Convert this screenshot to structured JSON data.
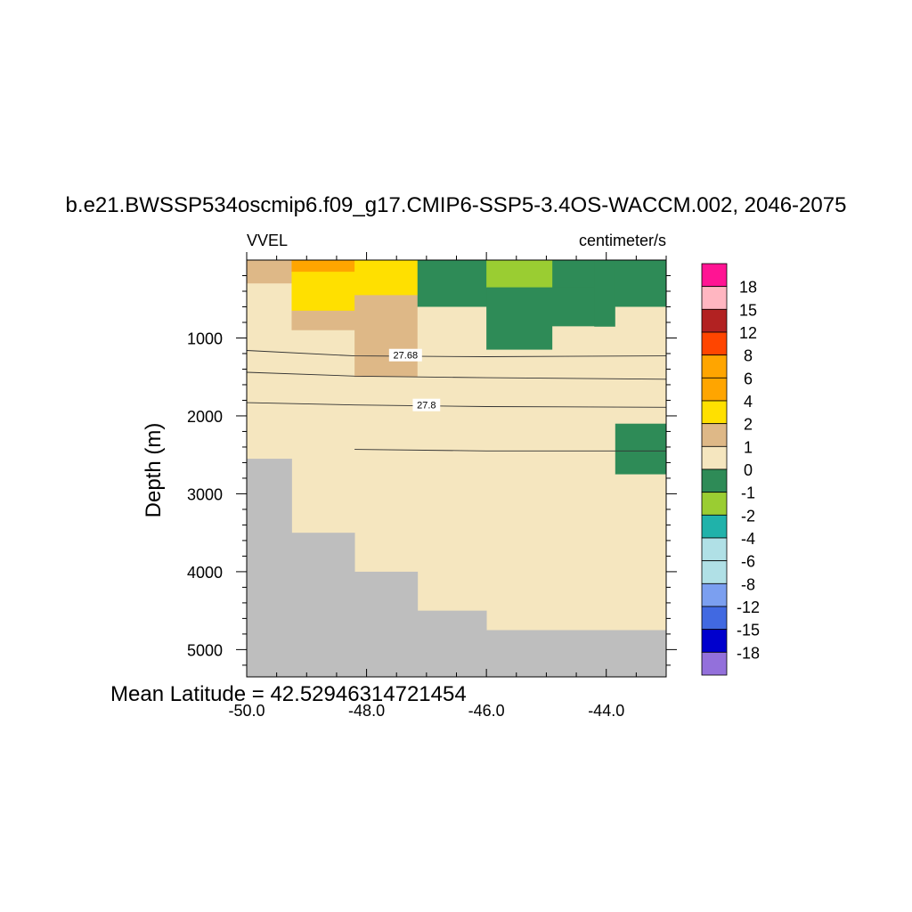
{
  "chart_data": {
    "type": "heatmap",
    "title": "b.e21.BWSSP534oscmip6.f09_g17.CMIP6-SSP5-3.4OS-WACCM.002, 2046-2075",
    "variable": "VVEL",
    "units": "centimeter/s",
    "ylabel": "Depth (m)",
    "xlabel": "",
    "footer": "Mean Latitude = 42.52946314721454",
    "xlim": [
      -50.0,
      -43.0
    ],
    "ylim": [
      5350,
      0
    ],
    "y_reversed": true,
    "x_ticks": [
      "-50.0",
      "-48.0",
      "-46.0",
      "-44.0"
    ],
    "x_tick_values": [
      -50,
      -48,
      -46,
      -44
    ],
    "y_ticks": [
      "1000",
      "2000",
      "3000",
      "4000",
      "5000"
    ],
    "y_tick_values": [
      1000,
      2000,
      3000,
      4000,
      5000
    ],
    "colorbar": {
      "labels": [
        "18",
        "15",
        "12",
        "8",
        "6",
        "4",
        "2",
        "1",
        "0",
        "-1",
        "-2",
        "-4",
        "-6",
        "-8",
        "-12",
        "-15",
        "-18"
      ],
      "colors": [
        "#ff1493",
        "#ffb6c1",
        "#b22222",
        "#ff4500",
        "#ffa500",
        "#ffa500",
        "#ffe000",
        "#deb887",
        "#f5e6bf",
        "#2e8b57",
        "#9acd32",
        "#20b2aa",
        "#b0e0e6",
        "#b0e0e6",
        "#7b9ff0",
        "#4169e1",
        "#0000cd",
        "#9370db"
      ]
    },
    "land_color": "#bebebe",
    "cells": [
      {
        "x0": -50.0,
        "x1": -49.25,
        "d0": 0,
        "d1": 300,
        "value": 1.5
      },
      {
        "x0": -50.0,
        "x1": -49.25,
        "d0": 300,
        "d1": 2550,
        "value": 0.5
      },
      {
        "x0": -49.25,
        "x1": -48.2,
        "d0": 0,
        "d1": 150,
        "value": 5
      },
      {
        "x0": -48.2,
        "x1": -47.15,
        "d0": 0,
        "d1": 150,
        "value": 3
      },
      {
        "x0": -49.25,
        "x1": -48.2,
        "d0": 150,
        "d1": 650,
        "value": 3
      },
      {
        "x0": -49.25,
        "x1": -48.2,
        "d0": 650,
        "d1": 900,
        "value": 1.5
      },
      {
        "x0": -49.25,
        "x1": -48.2,
        "d0": 900,
        "d1": 3500,
        "value": 0.5
      },
      {
        "x0": -48.2,
        "x1": -47.15,
        "d0": 150,
        "d1": 450,
        "value": 3
      },
      {
        "x0": -48.2,
        "x1": -47.15,
        "d0": 450,
        "d1": 1500,
        "value": 1.5
      },
      {
        "x0": -48.2,
        "x1": -47.15,
        "d0": 1500,
        "d1": 4000,
        "value": 0.5
      },
      {
        "x0": -47.15,
        "x1": -46.0,
        "d0": 0,
        "d1": 600,
        "value": -0.5
      },
      {
        "x0": -47.15,
        "x1": -46.0,
        "d0": 600,
        "d1": 4500,
        "value": 0.5
      },
      {
        "x0": -46.0,
        "x1": -44.9,
        "d0": 0,
        "d1": 350,
        "value": -1.5
      },
      {
        "x0": -46.0,
        "x1": -44.9,
        "d0": 350,
        "d1": 1150,
        "value": -0.5
      },
      {
        "x0": -46.0,
        "x1": -44.9,
        "d0": 1150,
        "d1": 4750,
        "value": 0.5
      },
      {
        "x0": -44.9,
        "x1": -44.2,
        "d0": 0,
        "d1": 350,
        "value": -0.5
      },
      {
        "x0": -44.9,
        "x1": -44.2,
        "d0": 350,
        "d1": 850,
        "value": -0.5
      },
      {
        "x0": -44.9,
        "x1": -43.85,
        "d0": 850,
        "d1": 4750,
        "value": 0.5
      },
      {
        "x0": -44.2,
        "x1": -43.85,
        "d0": 0,
        "d1": 850,
        "value": -0.5
      },
      {
        "x0": -43.85,
        "x1": -43.0,
        "d0": 0,
        "d1": 600,
        "value": -0.5
      },
      {
        "x0": -43.85,
        "x1": -43.0,
        "d0": 600,
        "d1": 2100,
        "value": 0.5
      },
      {
        "x0": -43.85,
        "x1": -43.0,
        "d0": 2100,
        "d1": 2750,
        "value": -0.5
      },
      {
        "x0": -43.85,
        "x1": -43.0,
        "d0": 2750,
        "d1": 4750,
        "value": 0.5
      }
    ],
    "land": [
      {
        "x0": -50.0,
        "x1": -49.25,
        "d0": 2550,
        "d1": 5350
      },
      {
        "x0": -49.25,
        "x1": -48.2,
        "d0": 3500,
        "d1": 5350
      },
      {
        "x0": -48.2,
        "x1": -47.15,
        "d0": 4000,
        "d1": 5350
      },
      {
        "x0": -47.15,
        "x1": -46.0,
        "d0": 4500,
        "d1": 5350
      },
      {
        "x0": -46.0,
        "x1": -43.0,
        "d0": 4750,
        "d1": 5350
      }
    ],
    "contours": [
      {
        "label": "27.68",
        "label_x": -47.35,
        "label_d": 1220,
        "points": [
          [
            -50.0,
            1160
          ],
          [
            -48.2,
            1230
          ],
          [
            -46.0,
            1240
          ],
          [
            -43.0,
            1230
          ]
        ]
      },
      {
        "label": "",
        "label_x": null,
        "label_d": null,
        "points": [
          [
            -50.0,
            1440
          ],
          [
            -48.2,
            1490
          ],
          [
            -46.0,
            1510
          ],
          [
            -43.0,
            1530
          ]
        ]
      },
      {
        "label": "27.8",
        "label_x": -47.0,
        "label_d": 1860,
        "points": [
          [
            -50.0,
            1830
          ],
          [
            -48.2,
            1860
          ],
          [
            -46.0,
            1880
          ],
          [
            -43.0,
            1890
          ]
        ]
      },
      {
        "label": "",
        "label_x": null,
        "label_d": null,
        "points": [
          [
            -48.2,
            2430
          ],
          [
            -46.0,
            2450
          ],
          [
            -43.0,
            2450
          ]
        ]
      }
    ]
  }
}
